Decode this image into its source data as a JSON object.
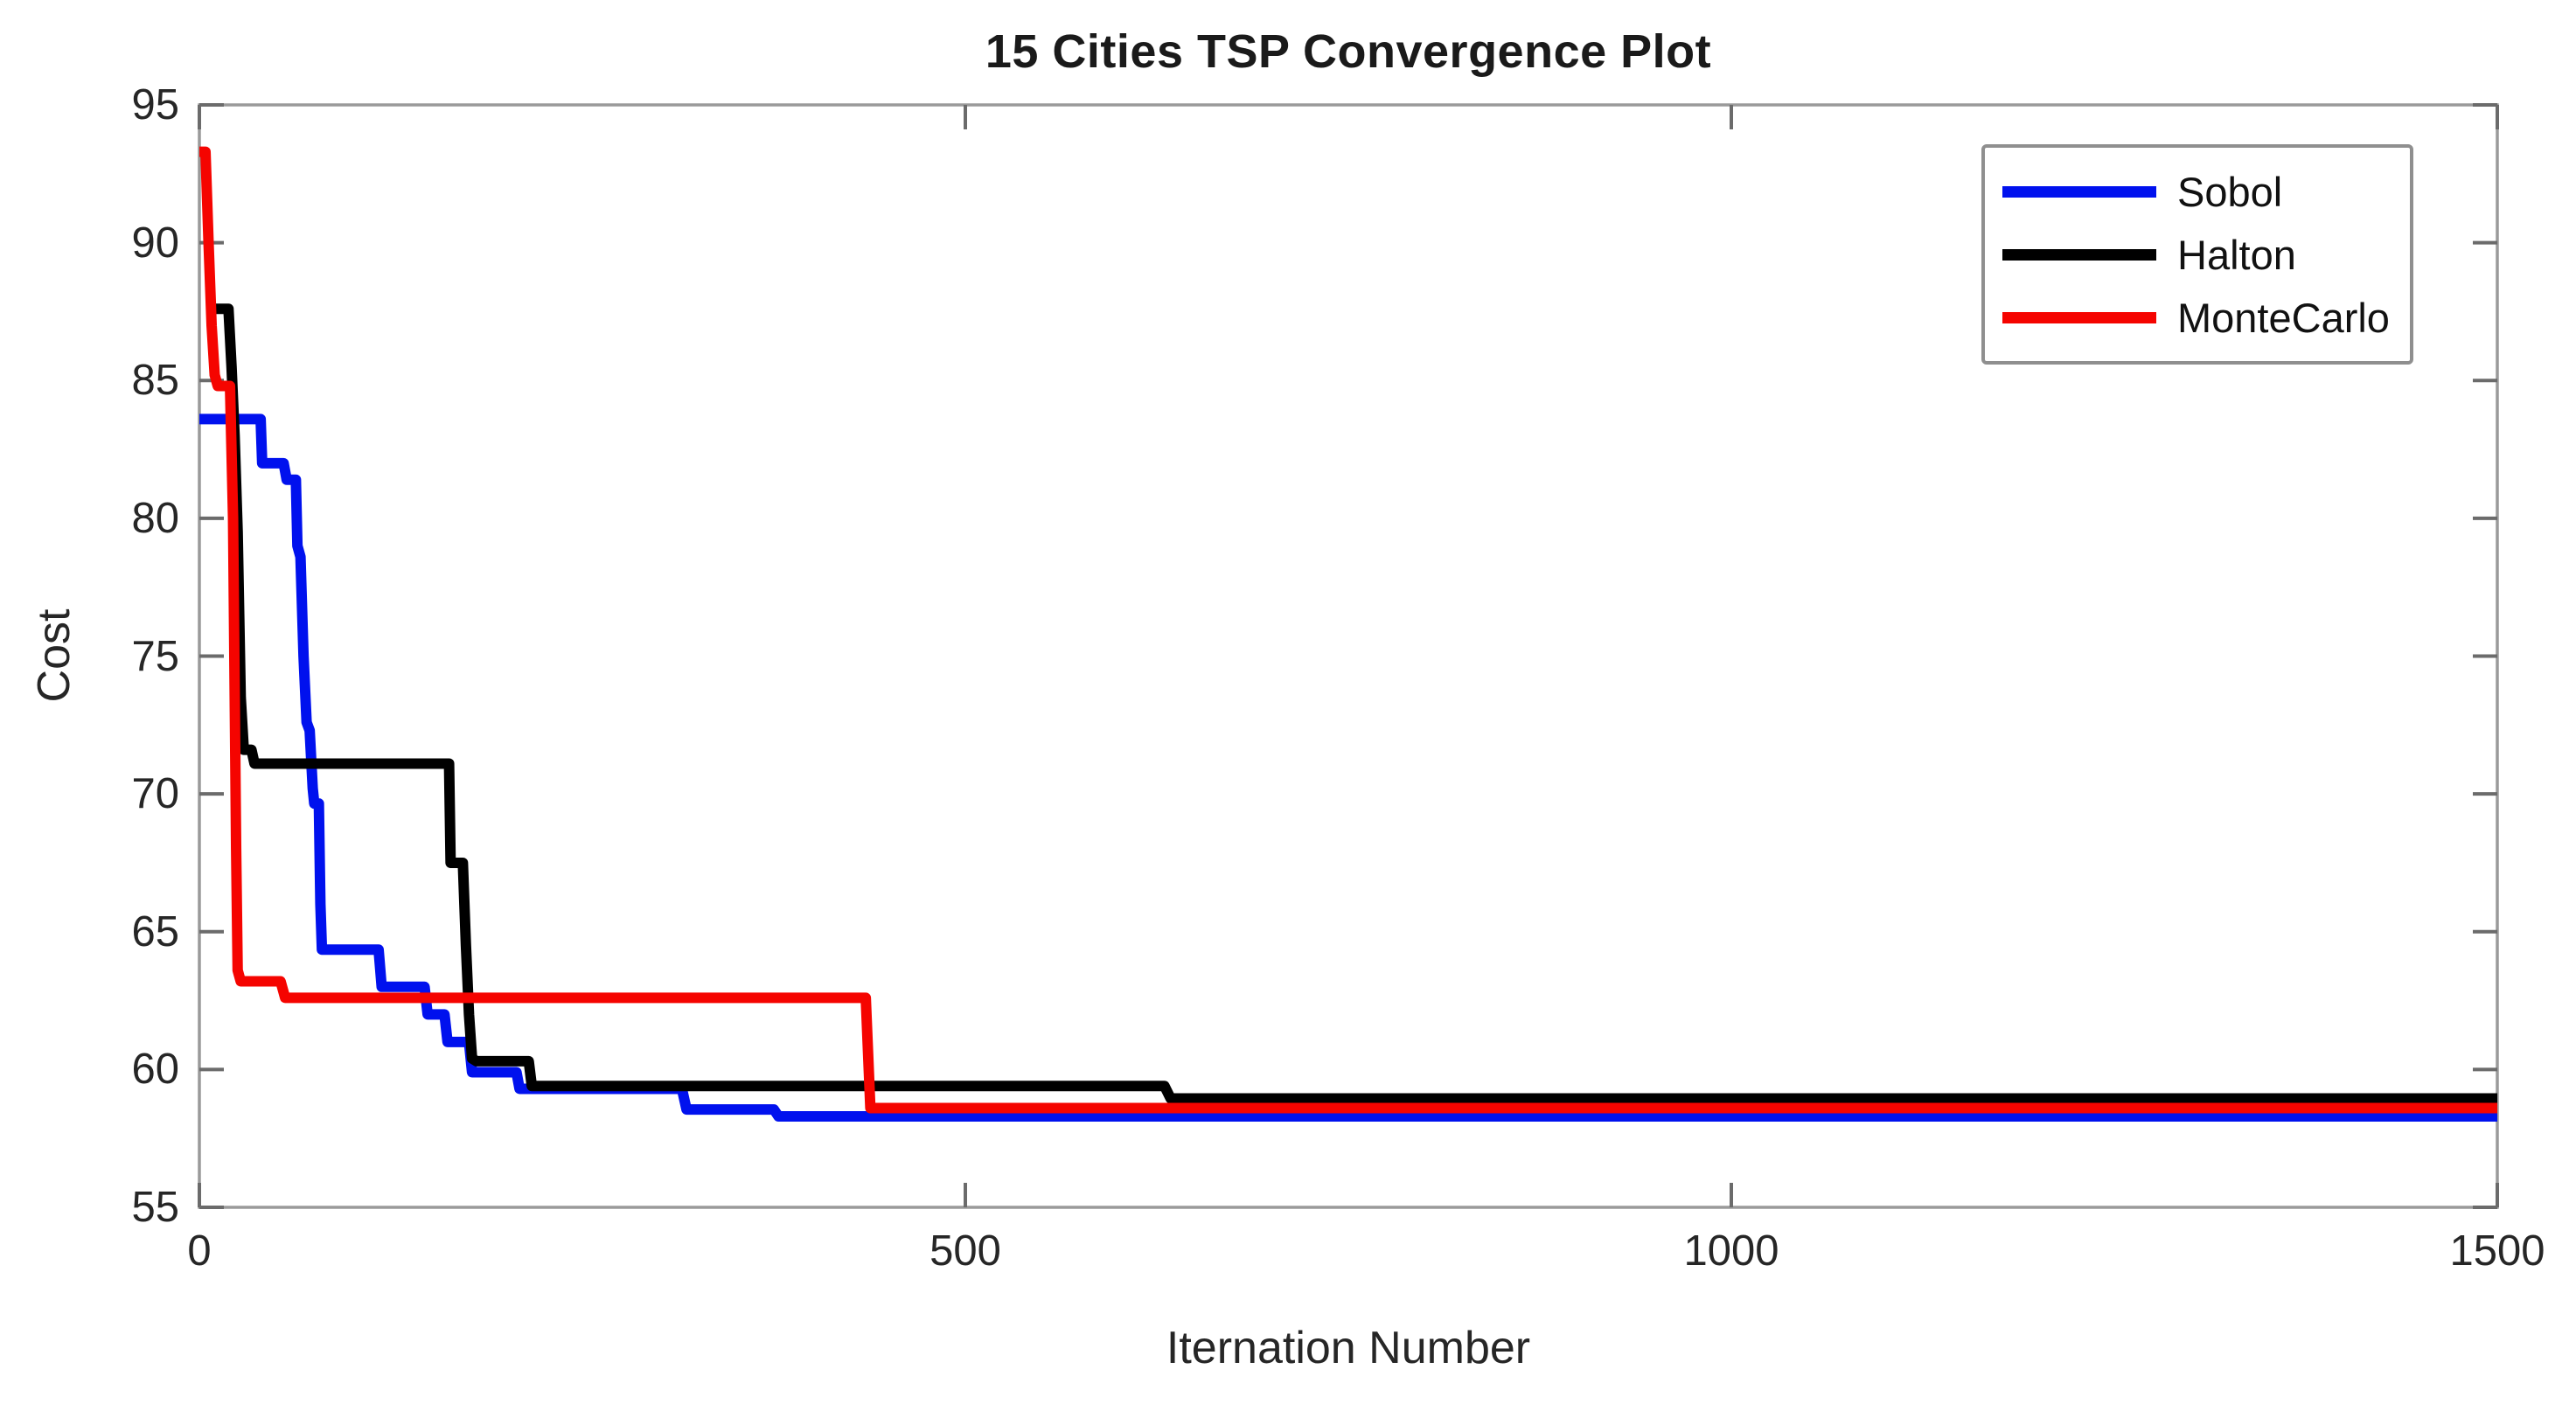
{
  "chart_data": {
    "type": "line",
    "title": "15 Cities TSP Convergence Plot",
    "xlabel": "Iternation Number",
    "ylabel": "Cost",
    "xlim": [
      0,
      1500
    ],
    "ylim": [
      55,
      95
    ],
    "xticks": [
      0,
      500,
      1000,
      1500
    ],
    "yticks": [
      55,
      60,
      65,
      70,
      75,
      80,
      85,
      90,
      95
    ],
    "grid": false,
    "legend_position": "top-right",
    "frame_color": "#9a9a9a",
    "tick_color": "#6b6b6b",
    "text_color": "#262626",
    "line_width": 12,
    "series": [
      {
        "name": "Sobol",
        "color": "#0011ee",
        "points": [
          [
            0,
            83.6
          ],
          [
            40,
            83.6
          ],
          [
            41,
            82.0
          ],
          [
            55,
            82.0
          ],
          [
            57,
            81.4
          ],
          [
            63,
            81.4
          ],
          [
            64,
            79.0
          ],
          [
            66,
            78.6
          ],
          [
            68,
            75.0
          ],
          [
            70,
            72.6
          ],
          [
            72,
            72.3
          ],
          [
            74,
            70.2
          ],
          [
            75,
            69.65
          ],
          [
            78,
            69.65
          ],
          [
            79,
            66.0
          ],
          [
            80,
            64.35
          ],
          [
            117,
            64.35
          ],
          [
            119,
            63.0
          ],
          [
            147,
            63.0
          ],
          [
            149,
            62.0
          ],
          [
            160,
            62.0
          ],
          [
            162,
            61.0
          ],
          [
            176,
            61.0
          ],
          [
            178,
            59.9
          ],
          [
            207,
            59.9
          ],
          [
            209,
            59.3
          ],
          [
            315,
            59.3
          ],
          [
            318,
            58.55
          ],
          [
            375,
            58.55
          ],
          [
            378,
            58.3
          ],
          [
            1500,
            58.3
          ]
        ]
      },
      {
        "name": "Halton",
        "color": "#000000",
        "points": [
          [
            8,
            87.6
          ],
          [
            19,
            87.6
          ],
          [
            21,
            85.5
          ],
          [
            23,
            83.0
          ],
          [
            25,
            79.5
          ],
          [
            26,
            76.5
          ],
          [
            27,
            73.5
          ],
          [
            29,
            71.6
          ],
          [
            34,
            71.6
          ],
          [
            36,
            71.1
          ],
          [
            163,
            71.1
          ],
          [
            164,
            67.5
          ],
          [
            172,
            67.5
          ],
          [
            174,
            64.5
          ],
          [
            176,
            62.0
          ],
          [
            178,
            60.4
          ],
          [
            181,
            60.3
          ],
          [
            215,
            60.3
          ],
          [
            217,
            59.4
          ],
          [
            630,
            59.4
          ],
          [
            634,
            58.95
          ],
          [
            1500,
            58.95
          ]
        ]
      },
      {
        "name": "MonteCarlo",
        "color": "#f50400",
        "points": [
          [
            0,
            93.3
          ],
          [
            4,
            93.3
          ],
          [
            6,
            90.0
          ],
          [
            8,
            87.0
          ],
          [
            10,
            85.2
          ],
          [
            12,
            84.8
          ],
          [
            20,
            84.8
          ],
          [
            22,
            80.0
          ],
          [
            23,
            74.0
          ],
          [
            24,
            68.0
          ],
          [
            25,
            63.6
          ],
          [
            27,
            63.2
          ],
          [
            53,
            63.2
          ],
          [
            56,
            62.6
          ],
          [
            435,
            62.6
          ],
          [
            438,
            58.6
          ],
          [
            1500,
            58.6
          ]
        ]
      }
    ]
  }
}
